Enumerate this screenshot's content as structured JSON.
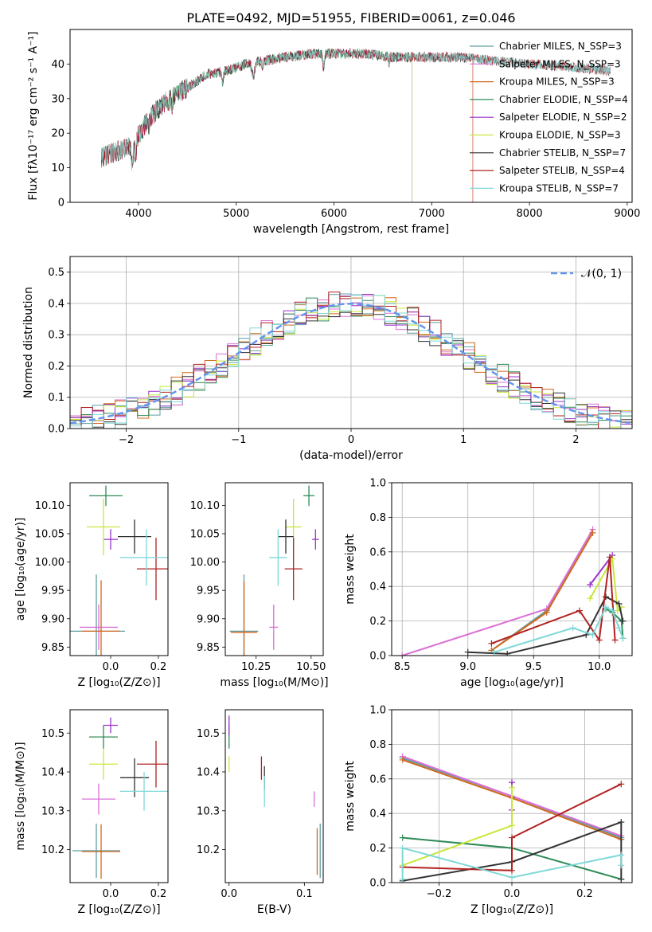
{
  "figure": {
    "title": "PLATE=0492, MJD=51955, FIBERID=0061, z=0.046"
  },
  "chart_data": [
    {
      "id": "spectrum",
      "type": "line",
      "xlabel": "wavelength [Angstrom, rest frame]",
      "ylabel": "Flux [fλ10⁻¹⁷ erg cm⁻² s⁻¹ A⁻¹]",
      "xlim": [
        3300,
        9050
      ],
      "ylim": [
        0,
        50
      ],
      "xticks": [
        4000,
        5000,
        6000,
        7000,
        8000,
        9000
      ],
      "yticks": [
        0,
        10,
        20,
        30,
        40
      ],
      "continuum_points": [
        [
          3620,
          13
        ],
        [
          3800,
          15
        ],
        [
          3950,
          17
        ],
        [
          4100,
          24
        ],
        [
          4300,
          30
        ],
        [
          4500,
          33
        ],
        [
          4700,
          37
        ],
        [
          4900,
          38
        ],
        [
          5100,
          40
        ],
        [
          5300,
          41
        ],
        [
          5500,
          42
        ],
        [
          5800,
          43
        ],
        [
          6000,
          43
        ],
        [
          6300,
          43
        ],
        [
          6600,
          42
        ],
        [
          7000,
          42
        ],
        [
          7300,
          42
        ],
        [
          7600,
          41
        ],
        [
          8000,
          40
        ],
        [
          8500,
          39
        ],
        [
          8830,
          38
        ]
      ],
      "legend_position": "upper right",
      "series": [
        {
          "name": "Chabrier MILES, N_SSP=3",
          "color": "#5f9ea0",
          "xrange": [
            3620,
            7420
          ]
        },
        {
          "name": "Salpeter MILES, N_SSP=3",
          "color": "#da70d6",
          "xrange": [
            3620,
            7420
          ]
        },
        {
          "name": "Kroupa MILES, N_SSP=3",
          "color": "#d2691e",
          "xrange": [
            3620,
            7420
          ]
        },
        {
          "name": "Chabrier ELODIE, N_SSP=4",
          "color": "#2e8b57",
          "xrange": [
            3900,
            6800
          ]
        },
        {
          "name": "Salpeter ELODIE, N_SSP=2",
          "color": "#9932cc",
          "xrange": [
            3900,
            6800
          ]
        },
        {
          "name": "Kroupa ELODIE, N_SSP=3",
          "color": "#c7e83a",
          "xrange": [
            3900,
            6800
          ]
        },
        {
          "name": "Chabrier STELIB, N_SSP=7",
          "color": "#333333",
          "xrange": [
            3620,
            8830
          ]
        },
        {
          "name": "Salpeter STELIB, N_SSP=4",
          "color": "#b22222",
          "xrange": [
            3620,
            8830
          ]
        },
        {
          "name": "Kroupa STELIB, N_SSP=7",
          "color": "#7fd8d8",
          "xrange": [
            3620,
            8830
          ]
        }
      ]
    },
    {
      "id": "residuals",
      "type": "line",
      "xlabel": "(data-model)/error",
      "ylabel": "Normed distribution",
      "xlim": [
        -2.5,
        2.5
      ],
      "ylim": [
        0,
        0.55
      ],
      "xticks": [
        -2,
        -1,
        0,
        1,
        2
      ],
      "yticks": [
        0.0,
        0.1,
        0.2,
        0.3,
        0.4,
        0.5
      ],
      "grid": true,
      "legend_position": "upper right",
      "reference": {
        "name": "𝒩(0, 1)",
        "color": "#6495ed"
      }
    },
    {
      "id": "age_vs_Z",
      "type": "scatter",
      "xlabel": "Z [log₁₀(Z/Z⊙)]",
      "ylabel": "age  [log₁₀(age/yr)]",
      "xlim": [
        -0.17,
        0.24
      ],
      "ylim": [
        9.835,
        10.14
      ],
      "xticks": [
        0.0,
        0.2
      ],
      "yticks": [
        9.85,
        9.9,
        9.95,
        10.0,
        10.05,
        10.1
      ],
      "points": [
        {
          "x": -0.06,
          "xerr": 0.12,
          "y": 9.878,
          "yerr": 0.1,
          "color": "#5f9ea0"
        },
        {
          "x": -0.05,
          "xerr": 0.08,
          "y": 9.885,
          "yerr": 0.04,
          "color": "#da70d6"
        },
        {
          "x": -0.04,
          "xerr": 0.08,
          "y": 9.878,
          "yerr": 0.09,
          "color": "#d2691e"
        },
        {
          "x": -0.02,
          "xerr": 0.07,
          "y": 10.117,
          "yerr": 0.018,
          "color": "#2e8b57"
        },
        {
          "x": 0.0,
          "xerr": 0.03,
          "y": 10.04,
          "yerr": 0.018,
          "color": "#9932cc"
        },
        {
          "x": -0.03,
          "xerr": 0.07,
          "y": 10.062,
          "yerr": 0.05,
          "color": "#c7e83a"
        },
        {
          "x": 0.1,
          "xerr": 0.07,
          "y": 10.045,
          "yerr": 0.03,
          "color": "#333333"
        },
        {
          "x": 0.19,
          "xerr": 0.08,
          "y": 9.988,
          "yerr": 0.055,
          "color": "#b22222"
        },
        {
          "x": 0.15,
          "xerr": 0.11,
          "y": 10.008,
          "yerr": 0.05,
          "color": "#7fd8d8"
        }
      ]
    },
    {
      "id": "age_vs_mass",
      "type": "scatter",
      "xlabel": "mass [log₁₀(M/M⊙)]",
      "ylabel": "",
      "xlim": [
        10.11,
        10.555
      ],
      "ylim": [
        9.835,
        10.14
      ],
      "xticks": [
        10.25,
        10.5
      ],
      "yticks": [
        9.85,
        9.9,
        9.95,
        10.0,
        10.05,
        10.1
      ],
      "points": [
        {
          "x": 10.195,
          "xerr": 0.065,
          "y": 9.878,
          "yerr": 0.1,
          "color": "#5f9ea0"
        },
        {
          "x": 10.33,
          "xerr": 0.02,
          "y": 9.885,
          "yerr": 0.04,
          "color": "#da70d6"
        },
        {
          "x": 10.195,
          "xerr": 0.06,
          "y": 9.876,
          "yerr": 0.09,
          "color": "#d2691e"
        },
        {
          "x": 10.49,
          "xerr": 0.025,
          "y": 10.117,
          "yerr": 0.018,
          "color": "#2e8b57"
        },
        {
          "x": 10.52,
          "xerr": 0.015,
          "y": 10.04,
          "yerr": 0.018,
          "color": "#9932cc"
        },
        {
          "x": 10.42,
          "xerr": 0.035,
          "y": 10.062,
          "yerr": 0.05,
          "color": "#c7e83a"
        },
        {
          "x": 10.385,
          "xerr": 0.035,
          "y": 10.045,
          "yerr": 0.03,
          "color": "#333333"
        },
        {
          "x": 10.42,
          "xerr": 0.04,
          "y": 9.988,
          "yerr": 0.055,
          "color": "#b22222"
        },
        {
          "x": 10.35,
          "xerr": 0.04,
          "y": 10.008,
          "yerr": 0.05,
          "color": "#7fd8d8"
        }
      ]
    },
    {
      "id": "weight_vs_age",
      "type": "line",
      "xlabel": "age  [log₁₀(age/yr)]",
      "ylabel": "mass weight",
      "xlim": [
        8.42,
        10.25
      ],
      "ylim": [
        0,
        1
      ],
      "xticks": [
        8.5,
        9.0,
        9.5,
        10.0
      ],
      "yticks": [
        0.0,
        0.2,
        0.4,
        0.6,
        0.8,
        1.0
      ],
      "grid": true,
      "series": [
        {
          "color": "#5f9ea0",
          "x": [
            9.18,
            9.6,
            9.95
          ],
          "y": [
            0.03,
            0.26,
            0.71
          ]
        },
        {
          "color": "#da70d6",
          "x": [
            8.5,
            9.6,
            9.95
          ],
          "y": [
            0.0,
            0.27,
            0.73
          ]
        },
        {
          "color": "#d2691e",
          "x": [
            9.18,
            9.6,
            9.95
          ],
          "y": [
            0.03,
            0.25,
            0.71
          ]
        },
        {
          "color": "#2e8b57",
          "x": [
            10.05,
            10.1,
            10.17,
            10.18
          ],
          "y": [
            0.27,
            0.25,
            0.2,
            0.1
          ]
        },
        {
          "color": "#9932cc",
          "x": [
            9.93,
            10.1
          ],
          "y": [
            0.41,
            0.58
          ]
        },
        {
          "color": "#c7e83a",
          "x": [
            9.93,
            10.1,
            10.14,
            10.17
          ],
          "y": [
            0.33,
            0.56,
            0.26,
            0.28
          ]
        },
        {
          "color": "#333333",
          "x": [
            9.0,
            9.3,
            9.9,
            10.05,
            10.15,
            10.18
          ],
          "y": [
            0.02,
            0.01,
            0.12,
            0.34,
            0.3,
            0.2
          ]
        },
        {
          "color": "#b22222",
          "x": [
            9.18,
            9.85,
            10.0,
            10.08,
            10.12
          ],
          "y": [
            0.07,
            0.26,
            0.09,
            0.57,
            0.09
          ]
        },
        {
          "color": "#7fd8d8",
          "x": [
            9.2,
            9.8,
            9.95,
            10.05,
            10.1,
            10.15,
            10.18
          ],
          "y": [
            0.02,
            0.16,
            0.12,
            0.28,
            0.26,
            0.16,
            0.1
          ]
        }
      ]
    },
    {
      "id": "mass_vs_Z",
      "type": "scatter",
      "xlabel": "Z [log₁₀(Z/Z⊙)]",
      "ylabel": "mass [log₁₀(M/M⊙)]",
      "xlim": [
        -0.17,
        0.24
      ],
      "ylim": [
        10.115,
        10.56
      ],
      "xticks": [
        0.0,
        0.2
      ],
      "yticks": [
        10.2,
        10.3,
        10.4,
        10.5
      ],
      "points": [
        {
          "x": -0.06,
          "xerr": 0.1,
          "y": 10.197,
          "yerr": 0.07,
          "color": "#5f9ea0"
        },
        {
          "x": -0.05,
          "xerr": 0.07,
          "y": 10.33,
          "yerr": 0.04,
          "color": "#da70d6"
        },
        {
          "x": -0.04,
          "xerr": 0.08,
          "y": 10.195,
          "yerr": 0.07,
          "color": "#d2691e"
        },
        {
          "x": -0.03,
          "xerr": 0.06,
          "y": 10.49,
          "yerr": 0.03,
          "color": "#2e8b57"
        },
        {
          "x": 0.0,
          "xerr": 0.03,
          "y": 10.52,
          "yerr": 0.02,
          "color": "#9932cc"
        },
        {
          "x": -0.03,
          "xerr": 0.06,
          "y": 10.42,
          "yerr": 0.04,
          "color": "#c7e83a"
        },
        {
          "x": 0.1,
          "xerr": 0.06,
          "y": 10.385,
          "yerr": 0.05,
          "color": "#333333"
        },
        {
          "x": 0.19,
          "xerr": 0.08,
          "y": 10.42,
          "yerr": 0.06,
          "color": "#b22222"
        },
        {
          "x": 0.14,
          "xerr": 0.1,
          "y": 10.35,
          "yerr": 0.05,
          "color": "#7fd8d8"
        }
      ]
    },
    {
      "id": "mass_vs_EBV",
      "type": "scatter",
      "xlabel": "E(B-V)",
      "ylabel": "",
      "xlim": [
        -0.005,
        0.125
      ],
      "ylim": [
        10.115,
        10.56
      ],
      "xticks": [
        0.0,
        0.1
      ],
      "yticks": [
        10.2,
        10.3,
        10.4,
        10.5
      ],
      "points": [
        {
          "x": 0.121,
          "xerr": 0,
          "y": 10.197,
          "yerr": 0.07,
          "color": "#5f9ea0"
        },
        {
          "x": 0.113,
          "xerr": 0,
          "y": 10.33,
          "yerr": 0.02,
          "color": "#da70d6"
        },
        {
          "x": 0.117,
          "xerr": 0,
          "y": 10.195,
          "yerr": 0.06,
          "color": "#d2691e"
        },
        {
          "x": 0.0,
          "xerr": 0,
          "y": 10.49,
          "yerr": 0.03,
          "color": "#2e8b57"
        },
        {
          "x": 0.0,
          "xerr": 0,
          "y": 10.52,
          "yerr": 0.025,
          "color": "#9932cc"
        },
        {
          "x": 0.0,
          "xerr": 0,
          "y": 10.42,
          "yerr": 0.02,
          "color": "#c7e83a"
        },
        {
          "x": 0.047,
          "xerr": 0,
          "y": 10.385,
          "yerr": 0.03,
          "color": "#333333"
        },
        {
          "x": 0.043,
          "xerr": 0,
          "y": 10.41,
          "yerr": 0.03,
          "color": "#b22222"
        },
        {
          "x": 0.047,
          "xerr": 0,
          "y": 10.35,
          "yerr": 0.04,
          "color": "#7fd8d8"
        }
      ]
    },
    {
      "id": "weight_vs_Z",
      "type": "line",
      "xlabel": "Z [log₁₀(Z/Z⊙)]",
      "ylabel": "mass weight",
      "xlim": [
        -0.33,
        0.33
      ],
      "ylim": [
        0,
        1
      ],
      "xticks": [
        -0.2,
        0.0,
        0.2
      ],
      "yticks": [
        0.0,
        0.2,
        0.4,
        0.6,
        0.8,
        1.0
      ],
      "grid": true,
      "series": [
        {
          "color": "#5f9ea0",
          "x": [
            -0.3,
            0.0,
            0.3
          ],
          "y": [
            0.72,
            0.5,
            0.26
          ]
        },
        {
          "color": "#da70d6",
          "x": [
            -0.3,
            0.0,
            0.3
          ],
          "y": [
            0.73,
            0.5,
            0.27
          ]
        },
        {
          "color": "#d2691e",
          "x": [
            -0.3,
            0.0,
            0.3
          ],
          "y": [
            0.71,
            0.49,
            0.25
          ]
        },
        {
          "color": "#2e8b57",
          "x": [
            -0.3,
            0.0,
            0.3
          ],
          "y": [
            0.26,
            0.2,
            0.02
          ]
        },
        {
          "color": "#9932cc",
          "x": [
            0.0,
            0.0
          ],
          "y": [
            0.58,
            0.42
          ]
        },
        {
          "color": "#c7e83a",
          "x": [
            -0.3,
            0.0,
            0.0
          ],
          "y": [
            0.1,
            0.33,
            0.55
          ]
        },
        {
          "color": "#333333",
          "x": [
            -0.3,
            0.0,
            0.3,
            0.3
          ],
          "y": [
            0.01,
            0.12,
            0.35,
            0.02
          ]
        },
        {
          "color": "#b22222",
          "x": [
            -0.3,
            0.0,
            0.0,
            0.3
          ],
          "y": [
            0.09,
            0.07,
            0.26,
            0.57
          ]
        },
        {
          "color": "#7fd8d8",
          "x": [
            -0.3,
            -0.3,
            0.0,
            0.3,
            0.3
          ],
          "y": [
            0.02,
            0.2,
            0.03,
            0.16,
            0.1
          ]
        }
      ]
    }
  ]
}
